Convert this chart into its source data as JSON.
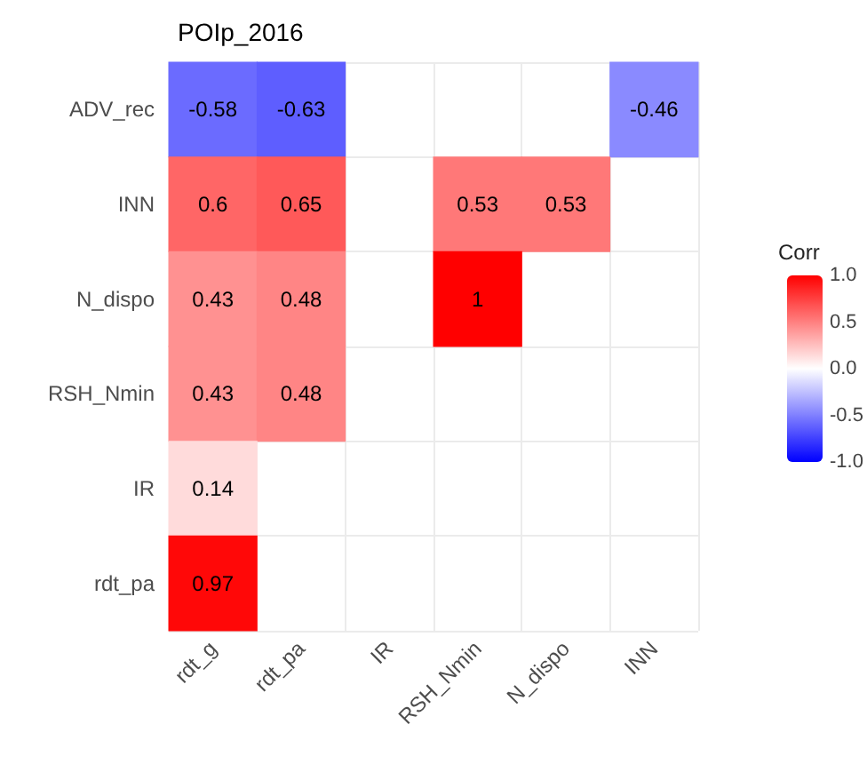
{
  "chart_data": {
    "type": "heatmap",
    "title": "POIp_2016",
    "clabel": "Corr",
    "categories": [
      "rdt_g",
      "rdt_pa",
      "IR",
      "RSH_Nmin",
      "N_dispo",
      "INN"
    ],
    "y_categories": [
      "ADV_rec",
      "INN",
      "N_dispo",
      "RSH_Nmin",
      "IR",
      "rdt_pa"
    ],
    "cells": [
      [
        -0.58,
        -0.63,
        null,
        null,
        null,
        -0.46
      ],
      [
        0.6,
        0.65,
        null,
        0.53,
        0.53,
        null
      ],
      [
        0.43,
        0.48,
        null,
        1,
        null,
        null
      ],
      [
        0.43,
        0.48,
        null,
        null,
        null,
        null
      ],
      [
        0.14,
        null,
        null,
        null,
        null,
        null
      ],
      [
        0.97,
        null,
        null,
        null,
        null,
        null
      ]
    ],
    "data_labels": true,
    "grid": true,
    "clim": [
      -1,
      1
    ],
    "cticks": [
      {
        "value": -1,
        "label": "-1.0"
      },
      {
        "value": -0.5,
        "label": "-0.5"
      },
      {
        "value": 0,
        "label": "0.0"
      },
      {
        "value": 0.5,
        "label": "0.5"
      },
      {
        "value": 1,
        "label": "1.0"
      }
    ]
  }
}
